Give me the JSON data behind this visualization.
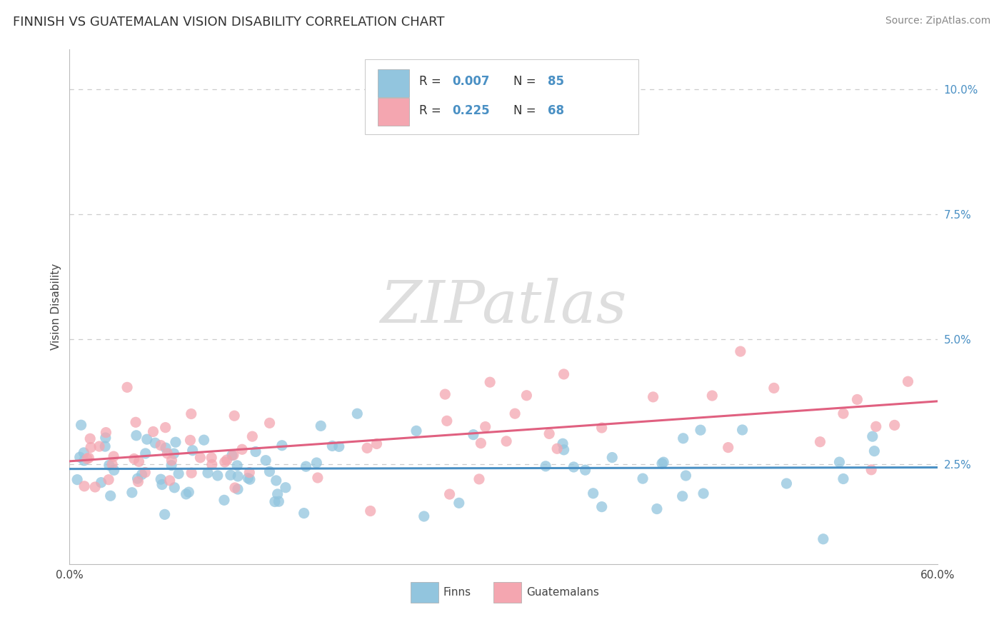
{
  "title": "FINNISH VS GUATEMALAN VISION DISABILITY CORRELATION CHART",
  "source": "Source: ZipAtlas.com",
  "ylabel": "Vision Disability",
  "x_min": 0.0,
  "x_max": 0.6,
  "y_min": 0.005,
  "y_max": 0.108,
  "color_finn": "#92c5de",
  "color_guatemalan": "#f4a6b0",
  "color_finn_line": "#4a90c4",
  "color_guatemalan_line": "#e06080",
  "background_color": "#ffffff",
  "grid_color": "#cccccc",
  "watermark_color": "#dedede",
  "finn_seed": 42,
  "guat_seed": 99,
  "title_fontsize": 13,
  "source_fontsize": 10,
  "tick_fontsize": 11,
  "ylabel_fontsize": 11
}
